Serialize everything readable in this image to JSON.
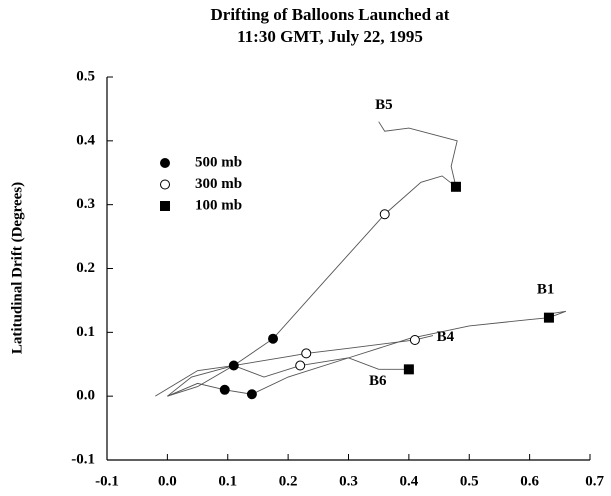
{
  "chart_data": {
    "type": "scatter",
    "title": [
      "Drifting of Balloons Launched at",
      "11:30 GMT, July 22, 1995"
    ],
    "y_label": "Latitudinal Drift (Degrees)",
    "xlim": [
      -0.1,
      0.7
    ],
    "ylim": [
      -0.1,
      0.5
    ],
    "xticks": [
      -0.1,
      {
        "value": 0,
        "label": "0.0"
      },
      0.1,
      0.2,
      0.3,
      0.4,
      0.5,
      0.6,
      0.7
    ],
    "yticks": [
      -0.1,
      {
        "value": 0,
        "label": "0.0"
      },
      0.1,
      0.2,
      0.3,
      0.4,
      0.5
    ],
    "series": [
      {
        "name": "500 mb",
        "marker": "circle",
        "filled": true,
        "color": "#000000",
        "x": [
          0.175,
          0.11,
          0.095,
          0.14
        ],
        "y": [
          0.09,
          0.048,
          0.01,
          0.003
        ]
      },
      {
        "name": "300 mb",
        "marker": "circle",
        "filled": false,
        "color": "#000000",
        "x": [
          0.36,
          0.23,
          0.22,
          0.41
        ],
        "y": [
          0.285,
          0.067,
          0.048,
          0.088
        ]
      },
      {
        "name": "100 mb",
        "marker": "square",
        "filled": true,
        "color": "#000000",
        "x": [
          0.478,
          0.632,
          0.4
        ],
        "y": [
          0.328,
          0.123,
          0.042
        ]
      }
    ],
    "lines": [
      {
        "color": "#555555",
        "x": [
          0,
          0.05,
          0.11,
          0.175,
          0.26,
          0.36,
          0.42,
          0.455,
          0.478,
          0.47,
          0.48,
          0.44,
          0.4,
          0.36,
          0.35
        ],
        "y": [
          0,
          0.015,
          0.048,
          0.09,
          0.18,
          0.285,
          0.335,
          0.345,
          0.328,
          0.36,
          0.4,
          0.41,
          0.42,
          0.415,
          0.43
        ]
      },
      {
        "color": "#555555",
        "x": [
          0,
          0.05,
          0.095,
          0.14,
          0.2,
          0.3,
          0.4,
          0.5,
          0.6,
          0.632,
          0.66,
          0.64
        ],
        "y": [
          0,
          0.02,
          0.01,
          0.003,
          0.03,
          0.06,
          0.09,
          0.11,
          0.12,
          0.123,
          0.133,
          0.13
        ]
      },
      {
        "color": "#555555",
        "x": [
          0,
          0.04,
          0.11,
          0.2,
          0.23,
          0.3,
          0.41,
          0.44
        ],
        "y": [
          0,
          0.03,
          0.048,
          0.062,
          0.067,
          0.075,
          0.088,
          0.095
        ]
      },
      {
        "color": "#555555",
        "x": [
          -0.02,
          0.05,
          0.11,
          0.16,
          0.22,
          0.3,
          0.35,
          0.4
        ],
        "y": [
          0,
          0.04,
          0.048,
          0.03,
          0.048,
          0.06,
          0.042,
          0.042
        ]
      }
    ],
    "annotations": [
      {
        "text": "B5",
        "x": 0.344,
        "y": 0.455
      },
      {
        "text": "B1",
        "x": 0.612,
        "y": 0.166
      },
      {
        "text": "B4",
        "x": 0.446,
        "y": 0.092
      },
      {
        "text": "B6",
        "x": 0.334,
        "y": 0.023
      }
    ]
  }
}
